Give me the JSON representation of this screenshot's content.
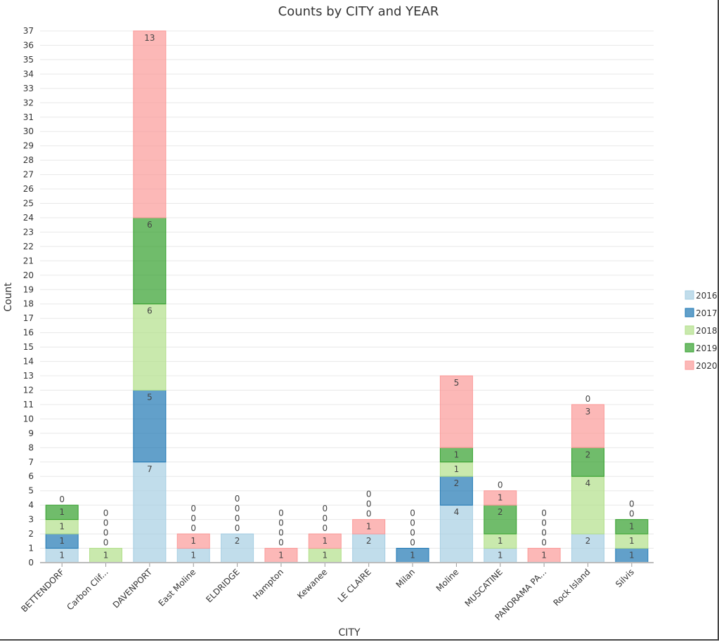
{
  "chart_data": {
    "type": "bar",
    "stacked": true,
    "title": "Counts by CITY and YEAR",
    "xlabel": "CITY",
    "ylabel": "Count",
    "ylim": [
      0,
      37
    ],
    "grid": true,
    "legend_position": "right",
    "categories": [
      "BETTENDORF",
      "Carbon Clif...",
      "DAVENPORT",
      "East Moline",
      "ELDRIDGE",
      "Hampton",
      "Kewanee",
      "LE CLAIRE",
      "Milan",
      "Moline",
      "MUSCATINE",
      "PANORAMA PA...",
      "Rock Island",
      "Silvis"
    ],
    "series": [
      {
        "name": "2016",
        "color": "#a6cee3",
        "values": [
          1,
          0,
          7,
          1,
          2,
          0,
          0,
          2,
          0,
          4,
          1,
          0,
          2,
          0
        ]
      },
      {
        "name": "2017",
        "color": "#1f78b4",
        "values": [
          1,
          0,
          5,
          0,
          0,
          0,
          0,
          0,
          1,
          2,
          0,
          0,
          0,
          1
        ]
      },
      {
        "name": "2018",
        "color": "#b2df8a",
        "values": [
          1,
          1,
          6,
          0,
          0,
          0,
          1,
          0,
          0,
          1,
          1,
          0,
          4,
          1
        ]
      },
      {
        "name": "2019",
        "color": "#33a02c",
        "values": [
          1,
          0,
          6,
          0,
          0,
          0,
          0,
          0,
          0,
          1,
          2,
          0,
          2,
          1
        ]
      },
      {
        "name": "2020",
        "color": "#fb9a99",
        "values": [
          0,
          0,
          13,
          1,
          0,
          1,
          1,
          1,
          0,
          5,
          1,
          1,
          3,
          0
        ]
      }
    ]
  }
}
